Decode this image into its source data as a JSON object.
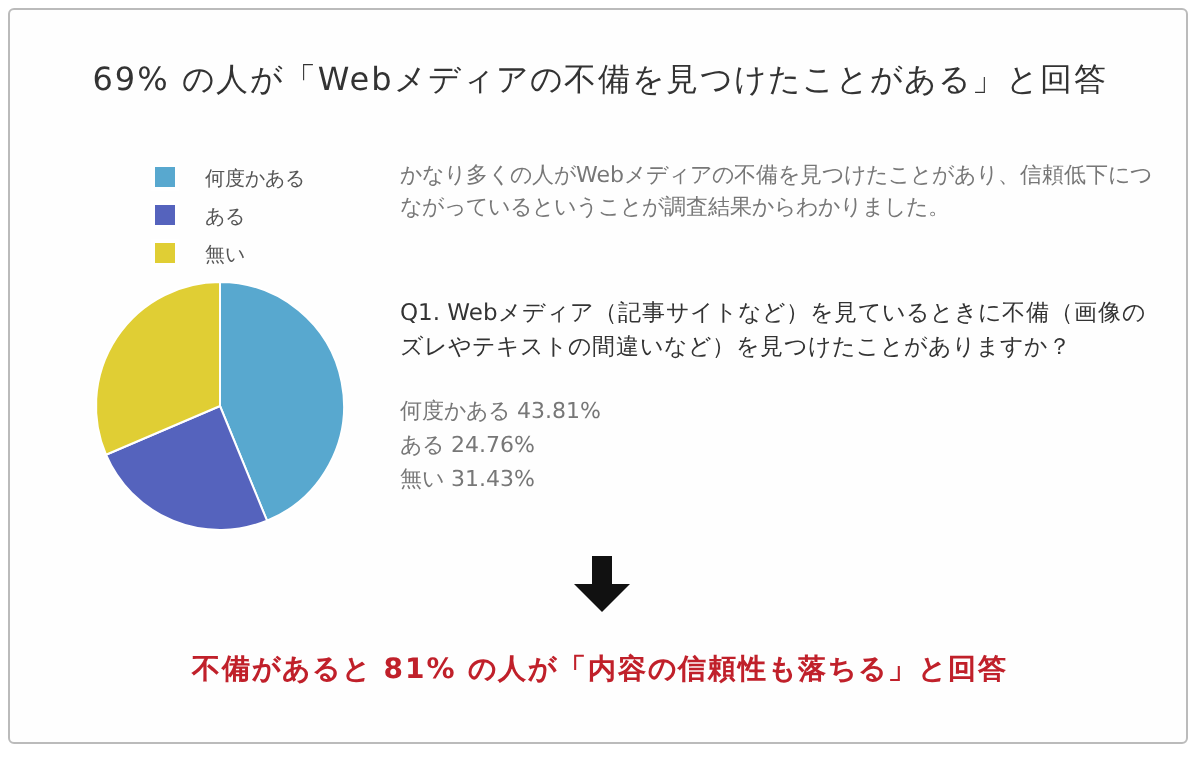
{
  "chart_data": {
    "type": "pie",
    "title": "69% の人が「Webメディアの不備を見つけたことがある」と回答",
    "subtitle": "かなり多くの人がWebメディアの不備を見つけたことがあり、信頼低下につながっているということが調査結果からわかりました。",
    "categories": [
      "何度かある",
      "ある",
      "無い"
    ],
    "values": [
      43.81,
      24.76,
      31.43
    ],
    "colors": [
      "#58a8cf",
      "#5563bd",
      "#e0ce34"
    ],
    "legend": "top",
    "annotations": [
      "Q1. Webメディア（記事サイトなど）を見ているときに不備（画像のズレやテキストの間違いなど）を見つけたことがありますか？",
      "何度かある 43.81%",
      "ある 24.76%",
      "無い 31.43%",
      "不備があると 81% の人が「内容の信頼性も落ちる」と回答"
    ]
  }
}
